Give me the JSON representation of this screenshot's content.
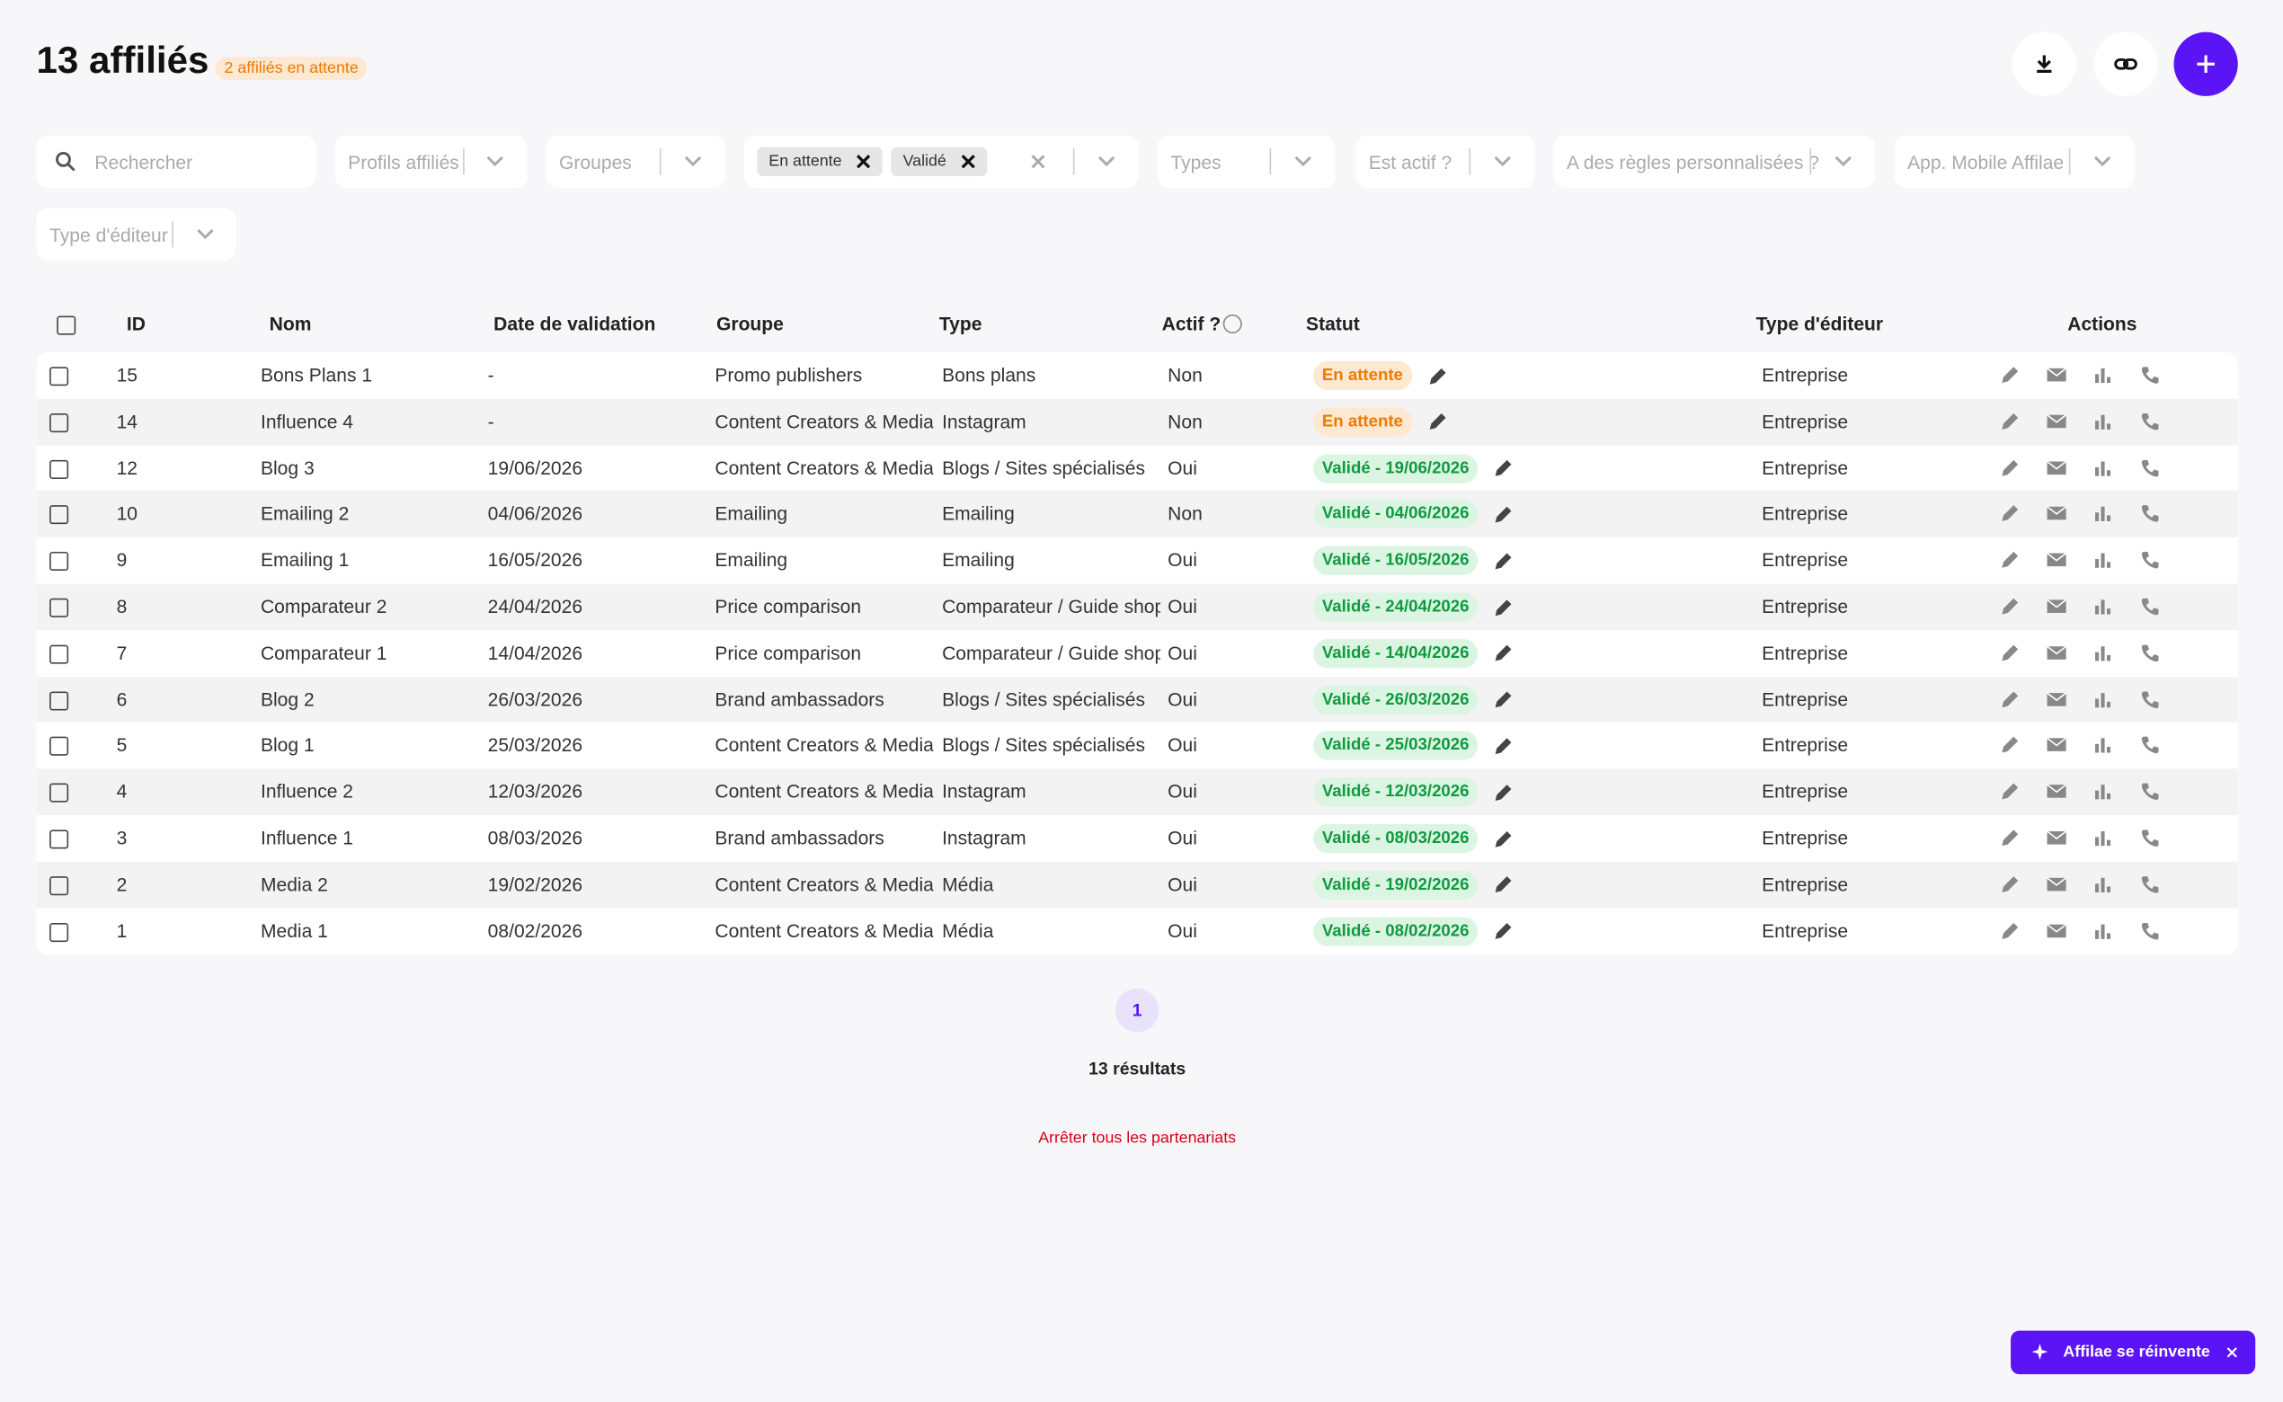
{
  "header": {
    "title": "13 affiliés",
    "badge": "2 affiliés en attente"
  },
  "filters": {
    "search": "Rechercher",
    "profiles": "Profils affiliés",
    "groups": "Groupes",
    "status": {
      "chips": [
        "En attente",
        "Validé"
      ]
    },
    "types": "Types",
    "active": "Est actif ?",
    "rules": "A des règles personnalisées ?",
    "mobile": "App. Mobile Affilae",
    "editor": "Type d'éditeur"
  },
  "table": {
    "headers": [
      "ID",
      "Nom",
      "Date de validation",
      "Groupe",
      "Type",
      "Actif ?",
      "Statut",
      "Type d'éditeur",
      "Actions"
    ],
    "rows": [
      [
        15,
        "Bons Plans 1",
        "-",
        "Promo publishers",
        "Bons plans",
        "Non",
        "En attente",
        "Entreprise"
      ],
      [
        14,
        "Influence 4",
        "-",
        "Content Creators & Media",
        "Instagram",
        "Non",
        "En attente",
        "Entreprise"
      ],
      [
        12,
        "Blog 3",
        "19/06/2026",
        "Content Creators & Media",
        "Blogs / Sites spécialisés",
        "Oui",
        "Validé - 19/06/2026",
        "Entreprise"
      ],
      [
        10,
        "Emailing 2",
        "04/06/2026",
        "Emailing",
        "Emailing",
        "Non",
        "Validé - 04/06/2026",
        "Entreprise"
      ],
      [
        9,
        "Emailing 1",
        "16/05/2026",
        "Emailing",
        "Emailing",
        "Oui",
        "Validé - 16/05/2026",
        "Entreprise"
      ],
      [
        8,
        "Comparateur 2",
        "24/04/2026",
        "Price comparison",
        "Comparateur / Guide shopping",
        "Oui",
        "Validé - 24/04/2026",
        "Entreprise"
      ],
      [
        7,
        "Comparateur 1",
        "14/04/2026",
        "Price comparison",
        "Comparateur / Guide shopping",
        "Oui",
        "Validé - 14/04/2026",
        "Entreprise"
      ],
      [
        6,
        "Blog 2",
        "26/03/2026",
        "Brand ambassadors",
        "Blogs / Sites spécialisés",
        "Oui",
        "Validé - 26/03/2026",
        "Entreprise"
      ],
      [
        5,
        "Blog 1",
        "25/03/2026",
        "Content Creators & Media",
        "Blogs / Sites spécialisés",
        "Oui",
        "Validé - 25/03/2026",
        "Entreprise"
      ],
      [
        4,
        "Influence 2",
        "12/03/2026",
        "Content Creators & Media",
        "Instagram",
        "Oui",
        "Validé - 12/03/2026",
        "Entreprise"
      ],
      [
        3,
        "Influence 1",
        "08/03/2026",
        "Brand ambassadors",
        "Instagram",
        "Oui",
        "Validé - 08/03/2026",
        "Entreprise"
      ],
      [
        2,
        "Media 2",
        "19/02/2026",
        "Content Creators & Media",
        "Média",
        "Oui",
        "Validé - 19/02/2026",
        "Entreprise"
      ],
      [
        1,
        "Media 1",
        "08/02/2026",
        "Content Creators & Media",
        "Média",
        "Oui",
        "Validé - 08/02/2026",
        "Entreprise"
      ]
    ]
  },
  "pagination": {
    "page": 1,
    "results": "13 résultats"
  },
  "stop_all": "Arrêter tous les partenariats",
  "banner": "Affilae se réinvente"
}
